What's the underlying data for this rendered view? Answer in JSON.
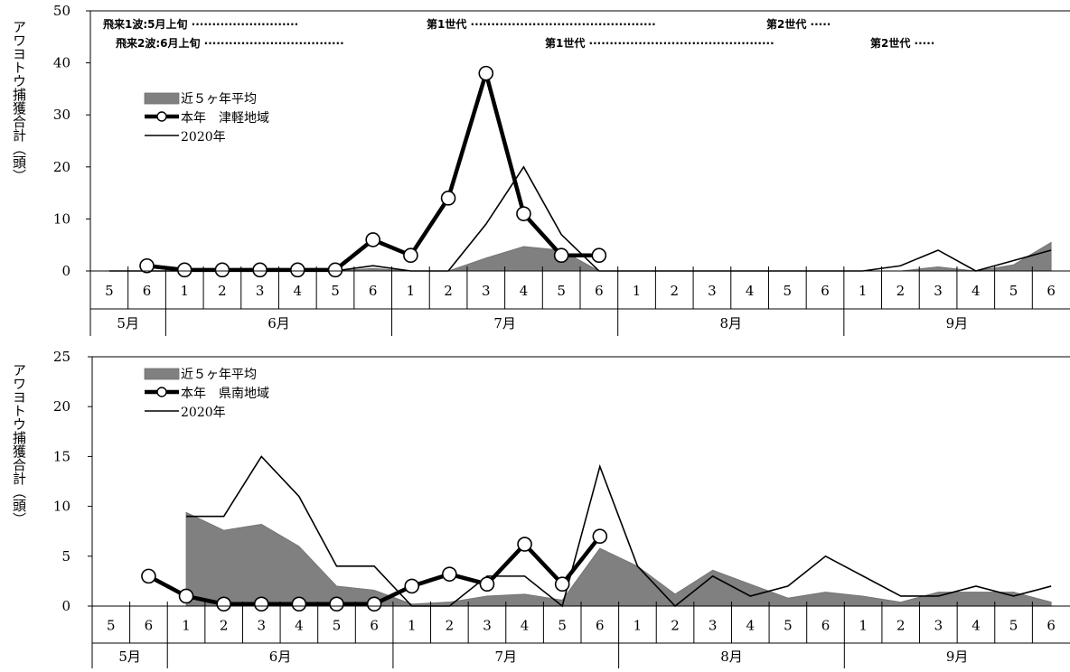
{
  "chart_data": [
    {
      "type": "line",
      "y_label": "アワヨトウ捕獲合計（頭）",
      "ylim": [
        0,
        50
      ],
      "y_ticks": [
        0,
        10,
        20,
        30,
        40,
        50
      ],
      "x_ticks": [
        "5",
        "6",
        "1",
        "2",
        "3",
        "4",
        "5",
        "6",
        "1",
        "2",
        "3",
        "4",
        "5",
        "6",
        "1",
        "2",
        "3",
        "4",
        "5",
        "6",
        "1",
        "2",
        "3",
        "4",
        "5",
        "6"
      ],
      "months": [
        {
          "label": "5月",
          "span": 2
        },
        {
          "label": "6月",
          "span": 6
        },
        {
          "label": "7月",
          "span": 6
        },
        {
          "label": "8月",
          "span": 6
        },
        {
          "label": "9月",
          "span": 6
        }
      ],
      "annotations": [
        {
          "row": 1,
          "parts": [
            "飛来1波:5月上旬",
            "第1世代",
            "第2世代"
          ],
          "dots": [
            " ·························· ",
            " ············································· ",
            " ·····"
          ]
        },
        {
          "row": 2,
          "parts": [
            "飛来2波:6月上旬",
            "第1世代",
            "第2世代"
          ],
          "dots": [
            " ·································· ",
            " ············································· ",
            " ·····"
          ]
        }
      ],
      "legend": {
        "avg": "近５ヶ年平均",
        "current": "本年　津軽地域",
        "prev": "2020年"
      },
      "series": [
        {
          "name": "近５ヶ年平均",
          "kind": "area",
          "color": "#808080",
          "values": [
            0,
            0,
            0,
            0,
            0,
            0,
            0,
            0.5,
            0,
            0,
            2.5,
            4.7,
            4,
            0,
            0,
            0,
            0,
            0,
            0,
            0,
            0,
            0,
            0.8,
            0,
            1.2,
            5.5
          ]
        },
        {
          "name": "本年　津軽地域",
          "kind": "line-marker",
          "color": "#000000",
          "values": [
            null,
            1,
            0.2,
            0.2,
            0.2,
            0.2,
            0.2,
            6,
            3,
            14,
            38,
            11,
            3,
            3,
            null,
            null,
            null,
            null,
            null,
            null,
            null,
            null,
            null,
            null,
            null,
            null
          ]
        },
        {
          "name": "2020年",
          "kind": "line",
          "color": "#000000",
          "values": [
            0,
            0,
            0,
            0,
            0,
            0,
            0,
            1,
            0,
            0,
            9,
            20,
            7,
            0,
            0,
            0,
            0,
            0,
            0,
            0,
            0,
            1,
            4,
            0,
            2,
            4
          ]
        }
      ]
    },
    {
      "type": "line",
      "y_label": "アワヨトウ捕獲合計（頭）",
      "ylim": [
        0,
        25
      ],
      "y_ticks": [
        0,
        5,
        10,
        15,
        20,
        25
      ],
      "x_ticks": [
        "5",
        "6",
        "1",
        "2",
        "3",
        "4",
        "5",
        "6",
        "1",
        "2",
        "3",
        "4",
        "5",
        "6",
        "1",
        "2",
        "3",
        "4",
        "5",
        "6",
        "1",
        "2",
        "3",
        "4",
        "5",
        "6"
      ],
      "months": [
        {
          "label": "5月",
          "span": 2
        },
        {
          "label": "6月",
          "span": 6
        },
        {
          "label": "7月",
          "span": 6
        },
        {
          "label": "8月",
          "span": 6
        },
        {
          "label": "9月",
          "span": 6
        }
      ],
      "legend": {
        "avg": "近５ヶ年平均",
        "current": "本年　県南地域",
        "prev": "2020年"
      },
      "series": [
        {
          "name": "近５ヶ年平均",
          "kind": "area",
          "color": "#808080",
          "values": [
            null,
            null,
            9.4,
            7.6,
            8.2,
            6,
            2,
            1.6,
            0.2,
            0.4,
            1,
            1.2,
            0.6,
            5.8,
            4,
            1.2,
            3.6,
            2.2,
            0.8,
            1.4,
            1,
            0.4,
            1.4,
            1.4,
            1.4,
            0.4
          ]
        },
        {
          "name": "本年　県南地域",
          "kind": "line-marker",
          "color": "#000000",
          "values": [
            null,
            3,
            1,
            0.2,
            0.2,
            0.2,
            0.2,
            0.2,
            2,
            3.2,
            2.2,
            6.2,
            2.2,
            7,
            null,
            null,
            null,
            null,
            null,
            null,
            null,
            null,
            null,
            null,
            null,
            null
          ]
        },
        {
          "name": "2020年",
          "kind": "line",
          "color": "#000000",
          "values": [
            null,
            null,
            9,
            9,
            15,
            11,
            4,
            4,
            0,
            0,
            3,
            3,
            0,
            14,
            4,
            0,
            3,
            1,
            2,
            5,
            3,
            1,
            1,
            2,
            1,
            2
          ]
        }
      ]
    }
  ]
}
